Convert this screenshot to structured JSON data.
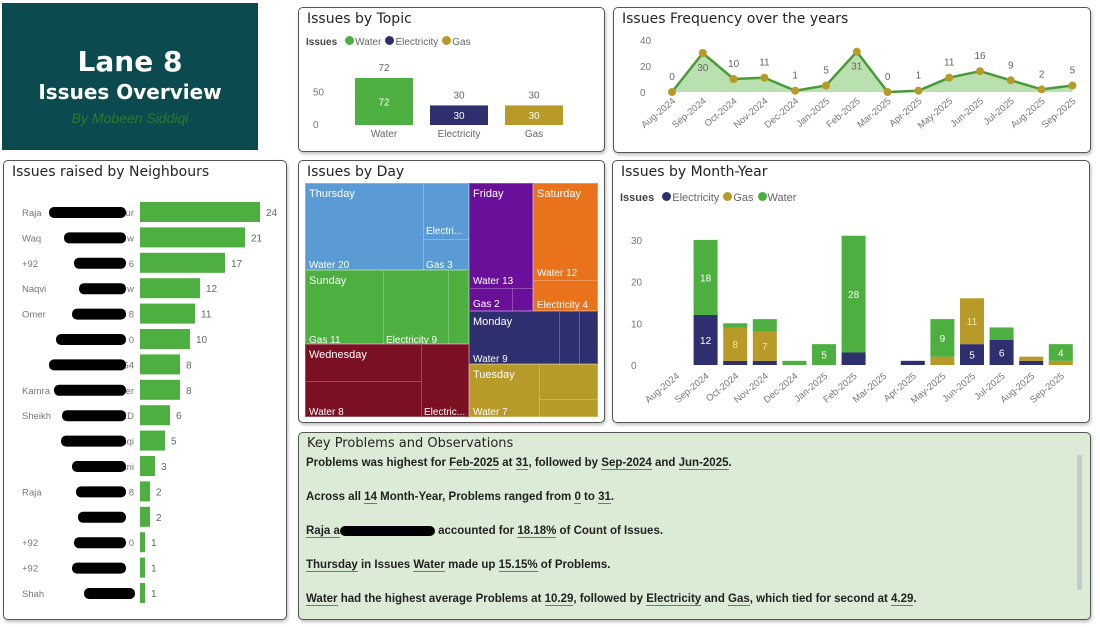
{
  "header": {
    "title": "Lane 8",
    "subtitle": "Issues Overview",
    "author": "By Mobeen Siddiqi"
  },
  "colors": {
    "water": "#4caf3f",
    "electricity": "#2e2f6e",
    "gas": "#b79a27",
    "hero_bg": "#0b4a4f"
  },
  "topic": {
    "title": "Issues by Topic",
    "legend_title": "Issues",
    "chart_data": {
      "type": "bar",
      "categories": [
        "Water",
        "Electricity",
        "Gas"
      ],
      "values": [
        72,
        30,
        30
      ],
      "yticks": [
        0,
        50
      ],
      "ylim": [
        0,
        80
      ],
      "legend": [
        "Water",
        "Electricity",
        "Gas"
      ],
      "legend_position": "top-left"
    }
  },
  "frequency": {
    "title": "Issues Frequency over the years",
    "chart_data": {
      "type": "area",
      "x": [
        "Aug-2024",
        "Sep-2024",
        "Oct-2024",
        "Nov-2024",
        "Dec-2024",
        "Jan-2025",
        "Feb-2025",
        "Mar-2025",
        "Apr-2025",
        "May-2025",
        "Jun-2025",
        "Jul-2025",
        "Aug-2025",
        "Sep-2025"
      ],
      "values": [
        0,
        30,
        10,
        11,
        1,
        5,
        31,
        0,
        1,
        11,
        16,
        9,
        2,
        5
      ],
      "yticks": [
        0,
        20,
        40
      ],
      "ylim": [
        0,
        40
      ]
    }
  },
  "neighbours": {
    "title": "Issues raised by Neighbours",
    "chart_data": {
      "type": "bar",
      "orientation": "horizontal",
      "categories": [
        "Raja",
        "Waq",
        "+92",
        "Naqvi",
        "Omer",
        "",
        "",
        "Kamra",
        "Sheikh",
        "",
        "",
        "Raja",
        "",
        "+92",
        "+92",
        "Shah"
      ],
      "category_suffixes": [
        "ur",
        "w",
        "6",
        "w",
        "8",
        "0",
        "54",
        "er",
        "ED",
        "iddiqi",
        "Kiyani",
        "8",
        "",
        "0",
        "",
        ""
      ],
      "values": [
        24,
        21,
        17,
        12,
        11,
        10,
        8,
        8,
        6,
        5,
        3,
        2,
        2,
        1,
        1,
        1
      ]
    }
  },
  "day": {
    "title": "Issues by Day",
    "groups": [
      {
        "day": "Thursday",
        "labels": [
          "Water 20",
          "Electri...",
          "Gas 3"
        ]
      },
      {
        "day": "Sunday",
        "labels": [
          "Gas 11",
          "Electricity 9"
        ]
      },
      {
        "day": "Wednesday",
        "labels": [
          "Water 8",
          "Electric..."
        ]
      },
      {
        "day": "Friday",
        "labels": [
          "Water 13",
          "Gas 2"
        ]
      },
      {
        "day": "Saturday",
        "labels": [
          "Water 12",
          "Electricity 4"
        ]
      },
      {
        "day": "Monday",
        "labels": [
          "Water 9"
        ]
      },
      {
        "day": "Tuesday",
        "labels": [
          "Water 7"
        ]
      }
    ],
    "day_colors": {
      "Thursday": "#5b9bd5",
      "Sunday": "#4caf3f",
      "Wednesday": "#7b1023",
      "Friday": "#6a0f9a",
      "Saturday": "#e8731c",
      "Monday": "#2e2f6e",
      "Tuesday": "#b79a27"
    }
  },
  "month": {
    "title": "Issues by Month-Year",
    "legend_title": "Issues",
    "chart_data": {
      "type": "bar",
      "stacked": true,
      "categories": [
        "Aug-2024",
        "Sep-2024",
        "Oct-2024",
        "Nov-2024",
        "Dec-2024",
        "Jan-2025",
        "Feb-2025",
        "Mar-2025",
        "Apr-2025",
        "May-2025",
        "Jun-2025",
        "Jul-2025",
        "Aug-2025",
        "Sep-2025"
      ],
      "series": [
        {
          "name": "Electricity",
          "values": [
            0,
            12,
            1,
            1,
            0,
            0,
            3,
            0,
            1,
            0,
            5,
            6,
            1,
            0
          ]
        },
        {
          "name": "Gas",
          "values": [
            0,
            0,
            8,
            7,
            0,
            0,
            0,
            0,
            0,
            2,
            11,
            0,
            1,
            1
          ]
        },
        {
          "name": "Water",
          "values": [
            0,
            18,
            1,
            3,
            1,
            5,
            28,
            0,
            0,
            9,
            0,
            3,
            0,
            4
          ]
        }
      ],
      "data_labels_shown": {
        "Electricity": [
          1,
          10,
          11
        ],
        "Gas": [
          2,
          3,
          10
        ],
        "Water": [
          1,
          5,
          6,
          9,
          13
        ]
      },
      "yticks": [
        0,
        10,
        20,
        30
      ],
      "ylim": [
        0,
        32
      ],
      "legend_position": "top-left"
    }
  },
  "key": {
    "title": "Key Problems and Observations",
    "lines": [
      [
        {
          "t": "Problems was highest for "
        },
        {
          "t": "Feb-2025",
          "u": 1
        },
        {
          "t": " at "
        },
        {
          "t": "31",
          "u": 1
        },
        {
          "t": ", followed by "
        },
        {
          "t": "Sep-2024",
          "u": 1
        },
        {
          "t": " and "
        },
        {
          "t": "Jun-2025",
          "u": 1
        },
        {
          "t": "."
        }
      ],
      [
        {
          "t": "Across all "
        },
        {
          "t": "14",
          "u": 1
        },
        {
          "t": " Month-Year, Problems ranged from "
        },
        {
          "t": "0",
          "u": 1
        },
        {
          "t": " to "
        },
        {
          "t": "31",
          "u": 1
        },
        {
          "t": "."
        }
      ],
      [
        {
          "t": " Raja a",
          "u": 1,
          "redact": 1
        },
        {
          "t": " accounted for "
        },
        {
          "t": "18.18%",
          "u": 1
        },
        {
          "t": " of Count of Issues."
        }
      ],
      [
        {
          "t": "Thursday",
          "u": 1
        },
        {
          "t": " in Issues "
        },
        {
          "t": "Water",
          "u": 1
        },
        {
          "t": " made up "
        },
        {
          "t": "15.15%",
          "u": 1
        },
        {
          "t": " of Problems."
        }
      ],
      [
        {
          "t": "Water",
          "u": 1
        },
        {
          "t": " had the highest average Problems at "
        },
        {
          "t": "10.29",
          "u": 1
        },
        {
          "t": ", followed by "
        },
        {
          "t": "Electricity",
          "u": 1
        },
        {
          "t": " and "
        },
        {
          "t": "Gas",
          "u": 1
        },
        {
          "t": ", which tied for second at "
        },
        {
          "t": "4.29",
          "u": 1
        },
        {
          "t": "."
        }
      ]
    ]
  }
}
